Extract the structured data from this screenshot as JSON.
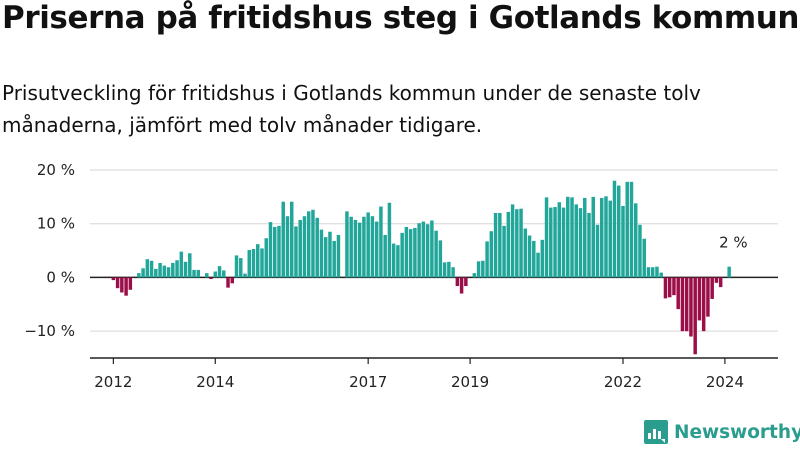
{
  "header": {
    "title": "Priserna på fritidshus steg i Gotlands kommun",
    "subtitle": "Prisutveckling för fritidshus i Gotlands kommun under de senaste tolv månaderna, jämfört med tolv månader tidigare."
  },
  "brand": {
    "name": "Newsworthy",
    "icon": "bar-chart-logo-icon",
    "color": "#2a9d8f"
  },
  "colors": {
    "positive": "#22a69a",
    "negative": "#9b0e48",
    "grid": "#d6d6d6",
    "axis": "#222222"
  },
  "chart_data": {
    "type": "bar",
    "title": "Priserna på fritidshus steg i Gotlands kommun",
    "xlabel": "",
    "ylabel": "",
    "unit": "%",
    "ylim": [
      -15,
      20
    ],
    "xlim": [
      "2011-08",
      "2025-02"
    ],
    "grid": true,
    "legend": "none",
    "y_ticks": [
      {
        "value": 20,
        "label": "20 %"
      },
      {
        "value": 10,
        "label": "10 %"
      },
      {
        "value": 0,
        "label": "0 %"
      },
      {
        "value": -10,
        "label": "−10 %"
      }
    ],
    "x_ticks": [
      {
        "date": "2012-01",
        "label": "2012"
      },
      {
        "date": "2014-01",
        "label": "2014"
      },
      {
        "date": "2017-01",
        "label": "2017"
      },
      {
        "date": "2019-01",
        "label": "2019"
      },
      {
        "date": "2022-01",
        "label": "2022"
      },
      {
        "date": "2024-01",
        "label": "2024"
      }
    ],
    "annotations": [
      {
        "date": "2024-03",
        "value": 2,
        "label": "2 %"
      }
    ],
    "start": "2012-01",
    "values": [
      -0.5,
      -2,
      -2.8,
      -3.4,
      -2.3,
      0,
      0.8,
      1.7,
      3.4,
      3.1,
      1.6,
      2.7,
      2.2,
      1.9,
      2.7,
      3.2,
      4.8,
      2.9,
      4.5,
      1.4,
      1.4,
      0,
      0.8,
      -0.3,
      1.1,
      2.1,
      1.3,
      -1.9,
      -1.1,
      4.1,
      3.6,
      0.7,
      5.1,
      5.3,
      6.2,
      5.4,
      7.3,
      10.3,
      9.4,
      9.6,
      14.1,
      11.4,
      14.1,
      9.5,
      10.7,
      11.4,
      12.3,
      12.6,
      11.1,
      8.9,
      7.5,
      8.5,
      6.8,
      7.9,
      0,
      12.3,
      11.3,
      10.7,
      10.2,
      11.3,
      12.1,
      11.4,
      10.4,
      13.2,
      7.9,
      13.9,
      6.3,
      6.0,
      8.3,
      9.4,
      9.0,
      9.2,
      10.1,
      10.4,
      9.9,
      10.6,
      8.7,
      6.9,
      2.8,
      2.9,
      1.9,
      -1.6,
      -3.0,
      -1.6,
      0,
      0.8,
      3.0,
      3.1,
      6.7,
      8.6,
      12.0,
      12.0,
      9.6,
      12.2,
      13.6,
      12.7,
      12.8,
      9.1,
      7.8,
      6.8,
      4.6,
      7.0,
      14.9,
      13.0,
      13.1,
      14.0,
      13.0,
      15.0,
      14.9,
      13.6,
      12.9,
      14.8,
      12.0,
      15.0,
      9.8,
      14.8,
      15.1,
      14.3,
      18.0,
      17.1,
      13.3,
      17.8,
      17.8,
      13.8,
      9.8,
      7.2,
      1.9,
      1.9,
      2.0,
      0.9,
      -3.9,
      -3.7,
      -3.3,
      -5.9,
      -10.0,
      -10.0,
      -11.0,
      -14.3,
      -8.0,
      -10.0,
      -7.3,
      -4.0,
      -1.0,
      -1.8,
      0,
      2.0
    ]
  }
}
